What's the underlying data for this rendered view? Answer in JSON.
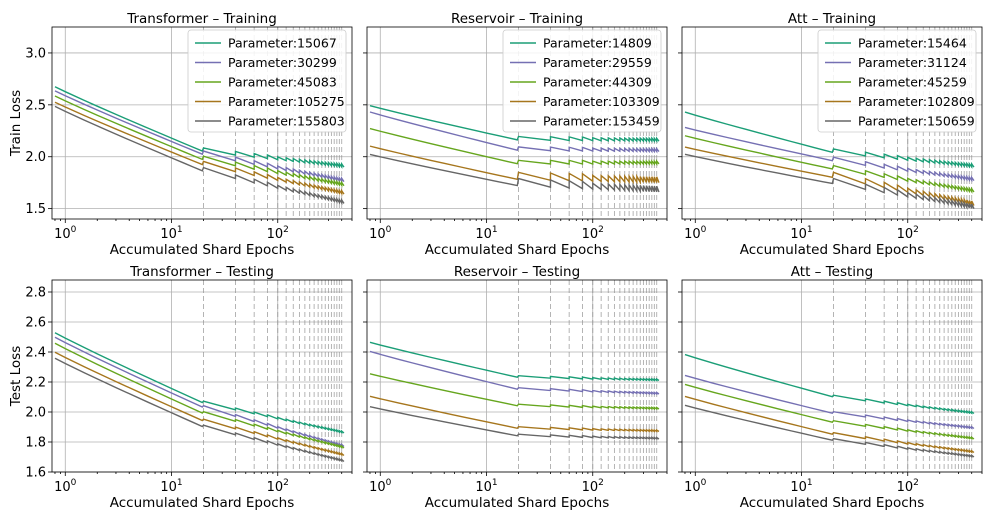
{
  "figure": {
    "rows": [
      {
        "ylabel": "Train Loss",
        "ylim": [
          1.4,
          3.25
        ],
        "yticks": [
          1.5,
          2.0,
          2.5,
          3.0
        ],
        "tick_labels": [
          "1.5",
          "2.0",
          "2.5",
          "3.0"
        ]
      },
      {
        "ylabel": "Test Loss",
        "ylim": [
          1.6,
          2.88
        ],
        "yticks": [
          1.6,
          1.8,
          2.0,
          2.2,
          2.4,
          2.6,
          2.8
        ],
        "tick_labels": [
          "1.6",
          "1.8",
          "2.0",
          "2.2",
          "2.4",
          "2.6",
          "2.8"
        ]
      }
    ],
    "xlabel": "Accumulated Shard Epochs",
    "xscale": "log",
    "xlim": [
      0.75,
      500
    ],
    "xticks": [
      1,
      10,
      100
    ],
    "xtick_labels": [
      {
        "base": "10",
        "exp": "0"
      },
      {
        "base": "10",
        "exp": "1"
      },
      {
        "base": "10",
        "exp": "2"
      }
    ],
    "shard_boundaries": [
      20,
      40,
      60,
      80,
      100,
      120,
      140,
      160,
      180,
      200,
      220,
      240,
      260,
      280,
      300,
      320,
      340,
      360,
      380,
      400
    ],
    "colors": [
      "#1b9e77",
      "#7570b3",
      "#66a61e",
      "#a6761d",
      "#666666"
    ]
  },
  "chart_data": [
    {
      "type": "line",
      "title": "Transformer – Training",
      "row": 0,
      "col": 0,
      "xlabel": "Accumulated Shard Epochs",
      "ylabel": "Train Loss",
      "xscale": "log",
      "legend": "top-right",
      "series": [
        {
          "name": "Parameter:15067",
          "start": 2.69,
          "at20": 2.05,
          "end": 1.9,
          "jump": 0.035
        },
        {
          "name": "Parameter:30299",
          "start": 2.65,
          "at20": 2.02,
          "end": 1.76,
          "jump": 0.035
        },
        {
          "name": "Parameter:45083",
          "start": 2.6,
          "at20": 1.97,
          "end": 1.72,
          "jump": 0.035
        },
        {
          "name": "Parameter:105275",
          "start": 2.54,
          "at20": 1.92,
          "end": 1.64,
          "jump": 0.035
        },
        {
          "name": "Parameter:155803",
          "start": 2.5,
          "at20": 1.86,
          "end": 1.55,
          "jump": 0.035
        }
      ]
    },
    {
      "type": "line",
      "title": "Reservoir – Training",
      "row": 0,
      "col": 1,
      "xlabel": "Accumulated Shard Epochs",
      "ylabel": "",
      "xscale": "log",
      "legend": "top-right",
      "series": [
        {
          "name": "Parameter:14809",
          "start": 2.5,
          "at20": 2.16,
          "end": 2.15,
          "jump": 0.035
        },
        {
          "name": "Parameter:29559",
          "start": 2.44,
          "at20": 2.06,
          "end": 2.05,
          "jump": 0.035
        },
        {
          "name": "Parameter:44309",
          "start": 2.28,
          "at20": 1.93,
          "end": 1.93,
          "jump": 0.035
        },
        {
          "name": "Parameter:103309",
          "start": 2.11,
          "at20": 1.78,
          "end": 1.75,
          "jump": 0.07
        },
        {
          "name": "Parameter:153459",
          "start": 2.03,
          "at20": 1.72,
          "end": 1.66,
          "jump": 0.07
        }
      ]
    },
    {
      "type": "line",
      "title": "Att – Training",
      "row": 0,
      "col": 2,
      "xlabel": "Accumulated Shard Epochs",
      "ylabel": "",
      "xscale": "log",
      "legend": "top-right",
      "series": [
        {
          "name": "Parameter:15464",
          "start": 2.44,
          "at20": 2.04,
          "end": 1.9,
          "jump": 0.035
        },
        {
          "name": "Parameter:31124",
          "start": 2.29,
          "at20": 1.96,
          "end": 1.77,
          "jump": 0.035
        },
        {
          "name": "Parameter:45259",
          "start": 2.21,
          "at20": 1.88,
          "end": 1.66,
          "jump": 0.035
        },
        {
          "name": "Parameter:102809",
          "start": 2.1,
          "at20": 1.8,
          "end": 1.53,
          "jump": 0.05
        },
        {
          "name": "Parameter:150659",
          "start": 2.03,
          "at20": 1.74,
          "end": 1.5,
          "jump": 0.05
        }
      ]
    },
    {
      "type": "line",
      "title": "Transformer – Testing",
      "row": 1,
      "col": 0,
      "xlabel": "Accumulated Shard Epochs",
      "ylabel": "Test Loss",
      "xscale": "log",
      "series": [
        {
          "start": 2.54,
          "at20": 2.06,
          "end": 1.86,
          "jump": 0.012
        },
        {
          "start": 2.51,
          "at20": 2.03,
          "end": 1.77,
          "jump": 0.012
        },
        {
          "start": 2.47,
          "at20": 1.99,
          "end": 1.76,
          "jump": 0.012
        },
        {
          "start": 2.41,
          "at20": 1.94,
          "end": 1.71,
          "jump": 0.012
        },
        {
          "start": 2.37,
          "at20": 1.9,
          "end": 1.67,
          "jump": 0.012
        }
      ]
    },
    {
      "type": "line",
      "title": "Reservoir – Testing",
      "row": 1,
      "col": 1,
      "xlabel": "Accumulated Shard Epochs",
      "ylabel": "",
      "xscale": "log",
      "series": [
        {
          "start": 2.47,
          "at20": 2.23,
          "end": 2.21,
          "jump": 0.012
        },
        {
          "start": 2.41,
          "at20": 2.15,
          "end": 2.12,
          "jump": 0.012
        },
        {
          "start": 2.26,
          "at20": 2.04,
          "end": 2.02,
          "jump": 0.012
        },
        {
          "start": 2.11,
          "at20": 1.89,
          "end": 1.87,
          "jump": 0.012
        },
        {
          "start": 2.04,
          "at20": 1.84,
          "end": 1.82,
          "jump": 0.012
        }
      ]
    },
    {
      "type": "line",
      "title": "Att – Testing",
      "row": 1,
      "col": 2,
      "xlabel": "Accumulated Shard Epochs",
      "ylabel": "",
      "xscale": "log",
      "series": [
        {
          "start": 2.39,
          "at20": 2.1,
          "end": 1.99,
          "jump": 0.012
        },
        {
          "start": 2.25,
          "at20": 1.99,
          "end": 1.89,
          "jump": 0.012
        },
        {
          "start": 2.19,
          "at20": 1.93,
          "end": 1.82,
          "jump": 0.012
        },
        {
          "start": 2.11,
          "at20": 1.85,
          "end": 1.73,
          "jump": 0.012
        },
        {
          "start": 2.05,
          "at20": 1.81,
          "end": 1.7,
          "jump": 0.012
        }
      ]
    }
  ]
}
